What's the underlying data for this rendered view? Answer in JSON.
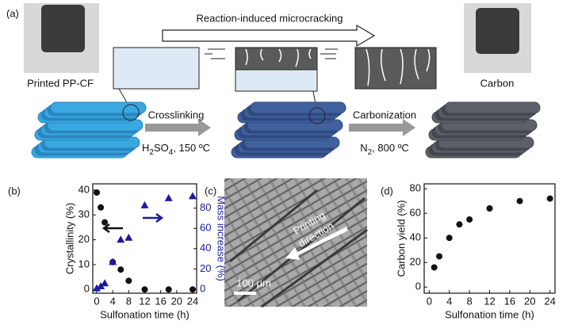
{
  "panel_labels": [
    "(a)",
    "(b)",
    "(c)",
    "(d)"
  ],
  "schematic": {
    "top_arrow": "Reaction-induced microcracking",
    "start_label": "Printed PP-CF",
    "end_label": "Carbon",
    "step1": "Crosslinking",
    "step1_condition": [
      "H",
      "2",
      "SO",
      "4",
      ", 150 ºC"
    ],
    "step2": "Carbonization",
    "step2_condition": [
      "N",
      "2",
      ", 800 ºC"
    ]
  },
  "micrograph": {
    "arrow_label": [
      "Printing",
      "direction"
    ],
    "scale_bar": "100 µm"
  },
  "chart_data": [
    {
      "type": "scatter",
      "xlabel": "Sulfonation time (h)",
      "ylabel": "Crystallinity (%)",
      "y2label": "Mass increase (%)",
      "x": [
        0,
        1,
        2,
        4,
        6,
        8,
        12,
        18,
        24
      ],
      "series": [
        {
          "color": "#111111",
          "marker": "circle",
          "values": [
            39,
            33,
            27,
            11,
            8,
            3.5,
            0,
            0,
            0
          ]
        },
        {
          "color": "#1a1aa0",
          "marker": "triangle",
          "axis": "y2",
          "values": [
            1,
            3,
            6,
            27,
            49,
            51,
            83,
            90,
            92
          ]
        }
      ],
      "xlim": [
        -1,
        25
      ],
      "xticks": [
        0,
        4,
        8,
        12,
        16,
        20,
        24
      ],
      "ylim": [
        -1.5,
        42.5
      ],
      "yticks": [
        0,
        10,
        20,
        30,
        40
      ],
      "y2lim": [
        -4,
        104
      ],
      "y2ticks": [
        0,
        20,
        40,
        60,
        80
      ]
    },
    {
      "type": "scatter",
      "xlabel": "Sulfonation time (h)",
      "ylabel": "Carbon yield (%)",
      "x": [
        1,
        2,
        4,
        6,
        8,
        12,
        18,
        24
      ],
      "series": [
        {
          "color": "#111111",
          "marker": "circle",
          "values": [
            16,
            25,
            40,
            51,
            55,
            64,
            70,
            72
          ]
        }
      ],
      "xlim": [
        -1,
        25
      ],
      "xticks": [
        0,
        4,
        8,
        12,
        16,
        20,
        24
      ],
      "ylim": [
        -5,
        84
      ],
      "yticks": [
        0,
        20,
        40,
        60,
        80
      ]
    }
  ]
}
